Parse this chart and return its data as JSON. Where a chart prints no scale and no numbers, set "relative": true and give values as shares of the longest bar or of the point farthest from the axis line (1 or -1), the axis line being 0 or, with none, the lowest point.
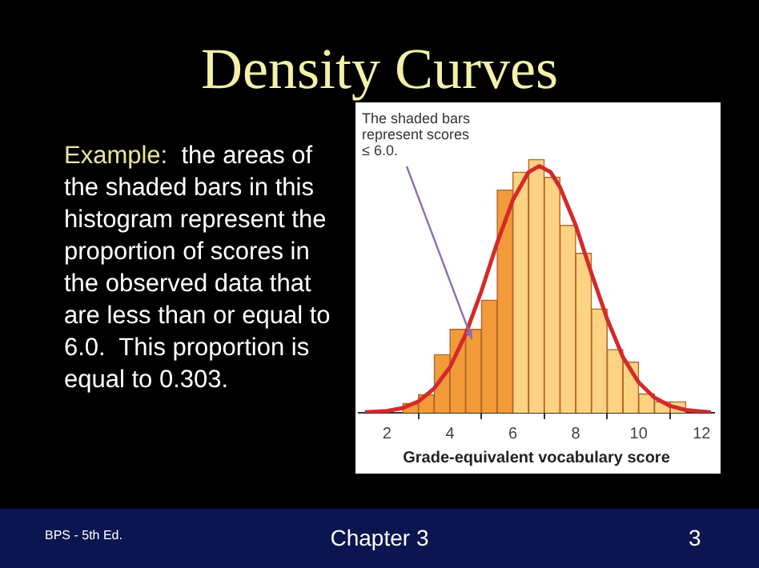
{
  "chart_data": {
    "type": "histogram",
    "title": "Density Curves",
    "xlabel": "Grade-equivalent vocabulary score",
    "relative": true,
    "bins": [
      2.5,
      3,
      3.5,
      4,
      4.5,
      5,
      5.5,
      6,
      6.5,
      7,
      7.5,
      8,
      8.5,
      9,
      9.5,
      10,
      10.5,
      11,
      11.5
    ],
    "values": [
      0.037,
      0.072,
      0.23,
      0.33,
      0.33,
      0.445,
      0.88,
      0.95,
      1,
      0.93,
      0.74,
      0.63,
      0.41,
      0.25,
      0.2,
      0.075,
      0.044,
      0.044
    ],
    "colors": [
      "#f39a3a",
      "#f39a3a",
      "#f39a3a",
      "#f39a3a",
      "#f39a3a",
      "#f39a3a",
      "#f39a3a",
      "#fdd383",
      "#fdd383",
      "#fdd383",
      "#fdd383",
      "#fdd383",
      "#fdd383",
      "#fdd383",
      "#fdd383",
      "#fdd383",
      "#fdd383",
      "#fdd383"
    ],
    "series": [
      {
        "type": "line",
        "color": "#d42a2a",
        "x": [
          1.3,
          2,
          2.5,
          3,
          3.5,
          4,
          4.5,
          5,
          5.5,
          6,
          6.5,
          6.84,
          7.2,
          7.5,
          8,
          8.5,
          9,
          9.5,
          10,
          10.5,
          11,
          11.5,
          12.3
        ],
        "values": [
          0.002,
          0.007,
          0.019,
          0.045,
          0.096,
          0.18,
          0.31,
          0.48,
          0.67,
          0.84,
          0.95,
          0.974,
          0.95,
          0.89,
          0.74,
          0.55,
          0.37,
          0.22,
          0.12,
          0.06,
          0.027,
          0.011,
          0.002
        ]
      }
    ],
    "xlim": [
      1.1,
      12.4
    ],
    "xticks": [
      2,
      4,
      6,
      8,
      10,
      12
    ],
    "annotations": [
      {
        "text": "The shaded bars represent scores ≤ 6.0.",
        "x": 4.7,
        "y": 0.29
      },
      "Example:",
      "the areas of the shaded bars in this histogram represent the proportion of scores in the observed data that are less than or equal to 6.0.  This proportion is equal to 0.303.",
      "BPS - 5th Ed.",
      "Chapter 3",
      "3"
    ]
  }
}
